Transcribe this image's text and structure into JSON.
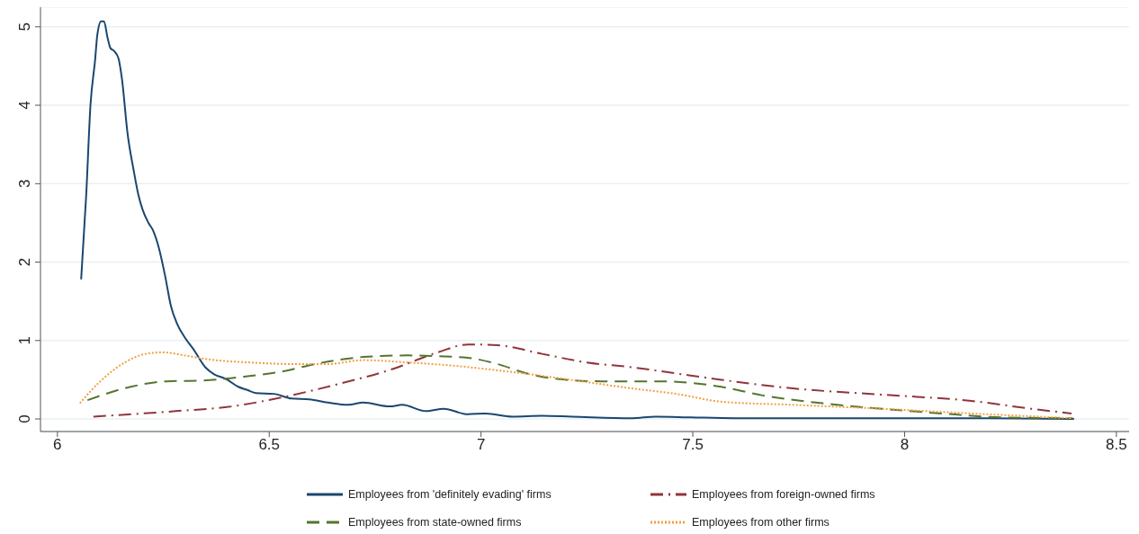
{
  "chart_data": {
    "type": "line",
    "xlim": [
      5.96,
      8.53
    ],
    "xticks": [
      6,
      6.5,
      7,
      7.5,
      8,
      8.5
    ],
    "ylim": [
      -0.16,
      5.25
    ],
    "yticks": [
      0,
      1,
      2,
      3,
      4,
      5
    ],
    "grid": "y",
    "legend": "bottom",
    "marker": "none",
    "series": [
      {
        "name": "Employees from 'definitely evading' firms",
        "color": "#1a476f",
        "line_style": "solid",
        "x": [
          6.056,
          6.068,
          6.078,
          6.089,
          6.094,
          6.103,
          6.11,
          6.118,
          6.125,
          6.134,
          6.144,
          6.152,
          6.166,
          6.18,
          6.191,
          6.201,
          6.215,
          6.226,
          6.24,
          6.254,
          6.268,
          6.282,
          6.303,
          6.321,
          6.349,
          6.37,
          6.398,
          6.427,
          6.448,
          6.469,
          6.511,
          6.553,
          6.595,
          6.638,
          6.687,
          6.722,
          6.785,
          6.814,
          6.87,
          6.912,
          6.969,
          7.011,
          7.074,
          7.144,
          7.214,
          7.356,
          7.412,
          7.496,
          7.6,
          7.8,
          8.0,
          8.2,
          8.4
        ],
        "values": [
          1.78,
          2.86,
          4.0,
          4.58,
          4.89,
          5.07,
          5.07,
          4.87,
          4.73,
          4.69,
          4.6,
          4.35,
          3.62,
          3.17,
          2.86,
          2.67,
          2.5,
          2.4,
          2.17,
          1.83,
          1.44,
          1.22,
          1.02,
          0.89,
          0.66,
          0.57,
          0.51,
          0.41,
          0.37,
          0.33,
          0.32,
          0.26,
          0.25,
          0.21,
          0.18,
          0.21,
          0.16,
          0.18,
          0.1,
          0.13,
          0.06,
          0.07,
          0.03,
          0.04,
          0.03,
          0.01,
          0.03,
          0.02,
          0.01,
          0.01,
          0.01,
          0.01,
          0.0
        ]
      },
      {
        "name": "Employees from foreign-owned firms",
        "color": "#90353b",
        "line_style": "dashdot",
        "x": [
          6.085,
          6.279,
          6.412,
          6.525,
          6.652,
          6.793,
          6.898,
          6.969,
          7.039,
          7.144,
          7.25,
          7.356,
          7.461,
          7.567,
          7.736,
          7.947,
          8.158,
          8.299,
          8.394
        ],
        "values": [
          0.03,
          0.1,
          0.16,
          0.27,
          0.43,
          0.64,
          0.85,
          0.95,
          0.94,
          0.83,
          0.72,
          0.66,
          0.58,
          0.5,
          0.39,
          0.31,
          0.23,
          0.13,
          0.07
        ]
      },
      {
        "name": "Employees from state-owned firms",
        "color": "#55752f",
        "line_style": "dashed",
        "x": [
          6.071,
          6.173,
          6.258,
          6.342,
          6.441,
          6.525,
          6.617,
          6.722,
          6.828,
          6.898,
          6.969,
          7.039,
          7.109,
          7.18,
          7.285,
          7.426,
          7.496,
          7.567,
          7.665,
          7.806,
          7.947,
          8.088,
          8.228,
          8.397
        ],
        "values": [
          0.24,
          0.41,
          0.48,
          0.49,
          0.54,
          0.6,
          0.71,
          0.79,
          0.81,
          0.8,
          0.78,
          0.7,
          0.58,
          0.51,
          0.48,
          0.48,
          0.46,
          0.41,
          0.3,
          0.2,
          0.13,
          0.07,
          0.02,
          0.01
        ]
      },
      {
        "name": "Employees from other firms",
        "color": "#f0a040",
        "line_style": "dotted",
        "x": [
          6.053,
          6.103,
          6.159,
          6.208,
          6.251,
          6.3,
          6.356,
          6.455,
          6.56,
          6.638,
          6.722,
          6.828,
          6.933,
          7.039,
          7.144,
          7.25,
          7.356,
          7.461,
          7.567,
          7.736,
          7.947,
          8.158,
          8.397
        ],
        "values": [
          0.2,
          0.49,
          0.72,
          0.83,
          0.85,
          0.81,
          0.76,
          0.72,
          0.7,
          0.7,
          0.75,
          0.72,
          0.68,
          0.62,
          0.55,
          0.47,
          0.39,
          0.32,
          0.22,
          0.18,
          0.13,
          0.07,
          0.01
        ]
      }
    ]
  }
}
